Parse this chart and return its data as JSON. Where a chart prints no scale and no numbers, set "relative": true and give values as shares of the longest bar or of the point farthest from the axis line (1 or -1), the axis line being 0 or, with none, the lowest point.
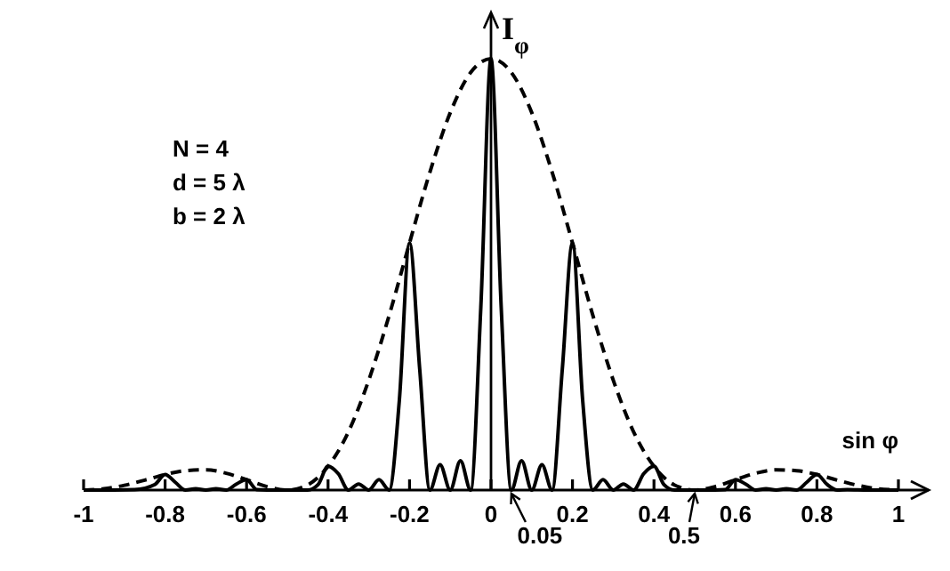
{
  "chart_data": {
    "type": "line",
    "relative": true,
    "xlabel": "sin φ",
    "ylabel": "I$_{φ}$",
    "xlim": [
      -1,
      1
    ],
    "xticks": [
      -1,
      -0.8,
      -0.6,
      -0.4,
      -0.2,
      0,
      0.2,
      0.4,
      0.6,
      0.8,
      1
    ],
    "annotations": [
      "N = 4",
      "d = 5 λ",
      "b = 2 λ",
      {
        "text": "0.05",
        "x": 0.05,
        "y": 0
      },
      {
        "text": "0.5",
        "x": 0.5,
        "y": 0
      }
    ],
    "series": [
      {
        "color": "#000000",
        "line_style": "solid",
        "x": [
          -1,
          -0.975,
          -0.925,
          -0.875,
          -0.825,
          -0.8,
          -0.775,
          -0.75,
          -0.725,
          -0.7,
          -0.675,
          -0.65,
          -0.625,
          -0.6,
          -0.575,
          -0.55,
          -0.525,
          -0.5,
          -0.475,
          -0.45,
          -0.425,
          -0.4,
          -0.375,
          -0.35,
          -0.325,
          -0.3,
          -0.275,
          -0.25,
          -0.225,
          -0.2,
          -0.175,
          -0.15,
          -0.125,
          -0.1,
          -0.075,
          -0.05,
          -0.025,
          0,
          0.025,
          0.05,
          0.075,
          0.1,
          0.125,
          0.15,
          0.175,
          0.2,
          0.225,
          0.25,
          0.275,
          0.3,
          0.325,
          0.35,
          0.375,
          0.4,
          0.425,
          0.45,
          0.475,
          0.5,
          0.525,
          0.55,
          0.575,
          0.6,
          0.625,
          0.65,
          0.675,
          0.7,
          0.725,
          0.75,
          0.775,
          0.8,
          0.825,
          0.85,
          0.875,
          0.925,
          0.975,
          1
        ],
        "values": [
          0,
          0,
          0,
          0.001,
          0.013,
          0.036,
          0.018,
          0,
          0.003,
          0,
          0.003,
          0,
          0.014,
          0.024,
          0.001,
          0,
          0,
          0,
          0,
          0,
          0.012,
          0.055,
          0.038,
          0,
          0.014,
          0,
          0.024,
          0,
          0.208,
          0.573,
          0.28,
          0,
          0.059,
          0,
          0.068,
          0,
          0.424,
          1,
          0.424,
          0,
          0.068,
          0,
          0.059,
          0,
          0.28,
          0.573,
          0.208,
          0,
          0.024,
          0,
          0.014,
          0,
          0.038,
          0.055,
          0.012,
          0,
          0,
          0,
          0,
          0,
          0.001,
          0.024,
          0.014,
          0,
          0.003,
          0,
          0.003,
          0,
          0.018,
          0.036,
          0.013,
          0,
          0.001,
          0,
          0,
          0
        ]
      },
      {
        "color": "#000000",
        "line_style": "dashed",
        "x": [
          -1,
          -0.95,
          -0.9,
          -0.85,
          -0.8,
          -0.75,
          -0.7,
          -0.65,
          -0.6,
          -0.55,
          -0.5,
          -0.45,
          -0.4,
          -0.35,
          -0.3,
          -0.25,
          -0.2,
          -0.15,
          -0.1,
          -0.05,
          0,
          0.05,
          0.1,
          0.15,
          0.2,
          0.25,
          0.3,
          0.35,
          0.4,
          0.45,
          0.5,
          0.55,
          0.6,
          0.65,
          0.7,
          0.75,
          0.8,
          0.85,
          0.9,
          0.95,
          1
        ],
        "values": [
          0,
          0.003,
          0.011,
          0.023,
          0.036,
          0.045,
          0.047,
          0.039,
          0.024,
          0.008,
          0,
          0.012,
          0.055,
          0.135,
          0.255,
          0.405,
          0.573,
          0.737,
          0.875,
          0.968,
          1,
          0.968,
          0.875,
          0.737,
          0.573,
          0.405,
          0.255,
          0.135,
          0.055,
          0.012,
          0,
          0.008,
          0.024,
          0.039,
          0.047,
          0.045,
          0.036,
          0.023,
          0.011,
          0.003,
          0
        ]
      }
    ]
  }
}
